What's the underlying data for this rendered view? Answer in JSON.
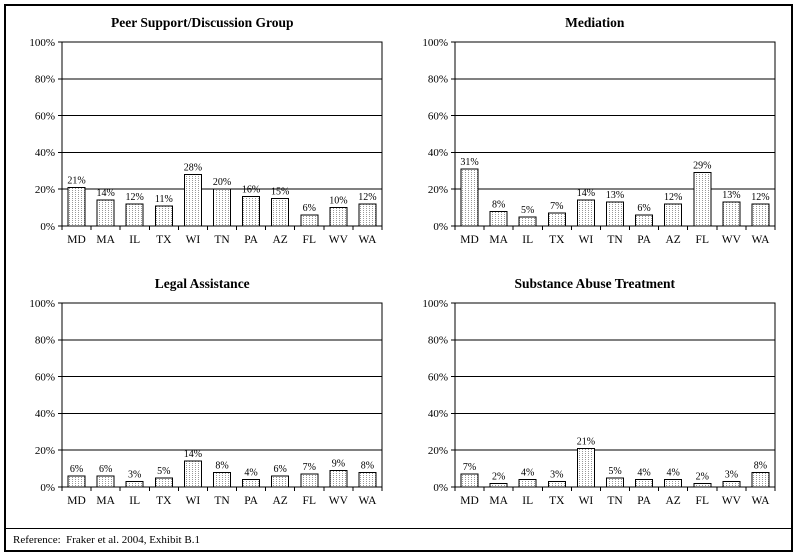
{
  "page": {
    "background": "#ffffff",
    "border_color": "#000000",
    "bar_dot_color": "#999999",
    "bar_border_color": "#000000",
    "gridline_color": "#000000"
  },
  "footer": {
    "reference": "Reference:  Fraker et al. 2004, Exhibit B.1"
  },
  "chart_data": [
    {
      "type": "bar",
      "title": "Peer Support/Discussion Group",
      "categories": [
        "MD",
        "MA",
        "IL",
        "TX",
        "WI",
        "TN",
        "PA",
        "AZ",
        "FL",
        "WV",
        "WA"
      ],
      "values": [
        21,
        14,
        12,
        11,
        28,
        20,
        16,
        15,
        6,
        10,
        12
      ],
      "labels": [
        "21%",
        "14%",
        "12%",
        "11%",
        "28%",
        "20%",
        "16%",
        "15%",
        "6%",
        "10%",
        "12%"
      ],
      "xlabel": "",
      "ylabel": "",
      "ylim": [
        0,
        100
      ],
      "yticks": [
        0,
        20,
        40,
        60,
        80,
        100
      ],
      "ytick_labels": [
        "0%",
        "20%",
        "40%",
        "60%",
        "80%",
        "100%"
      ],
      "grid": "horizontal",
      "legend": "none"
    },
    {
      "type": "bar",
      "title": "Mediation",
      "categories": [
        "MD",
        "MA",
        "IL",
        "TX",
        "WI",
        "TN",
        "PA",
        "AZ",
        "FL",
        "WV",
        "WA"
      ],
      "values": [
        31,
        8,
        5,
        7,
        14,
        13,
        6,
        12,
        29,
        13,
        12
      ],
      "labels": [
        "31%",
        "8%",
        "5%",
        "7%",
        "14%",
        "13%",
        "6%",
        "12%",
        "29%",
        "13%",
        "12%"
      ],
      "xlabel": "",
      "ylabel": "",
      "ylim": [
        0,
        100
      ],
      "yticks": [
        0,
        20,
        40,
        60,
        80,
        100
      ],
      "ytick_labels": [
        "0%",
        "20%",
        "40%",
        "60%",
        "80%",
        "100%"
      ],
      "grid": "horizontal",
      "legend": "none"
    },
    {
      "type": "bar",
      "title": "Legal Assistance",
      "categories": [
        "MD",
        "MA",
        "IL",
        "TX",
        "WI",
        "TN",
        "PA",
        "AZ",
        "FL",
        "WV",
        "WA"
      ],
      "values": [
        6,
        6,
        3,
        5,
        14,
        8,
        4,
        6,
        7,
        9,
        8
      ],
      "labels": [
        "6%",
        "6%",
        "3%",
        "5%",
        "14%",
        "8%",
        "4%",
        "6%",
        "7%",
        "9%",
        "8%"
      ],
      "xlabel": "",
      "ylabel": "",
      "ylim": [
        0,
        100
      ],
      "yticks": [
        0,
        20,
        40,
        60,
        80,
        100
      ],
      "ytick_labels": [
        "0%",
        "20%",
        "40%",
        "60%",
        "80%",
        "100%"
      ],
      "grid": "horizontal",
      "legend": "none"
    },
    {
      "type": "bar",
      "title": "Substance Abuse Treatment",
      "categories": [
        "MD",
        "MA",
        "IL",
        "TX",
        "WI",
        "TN",
        "PA",
        "AZ",
        "FL",
        "WV",
        "WA"
      ],
      "values": [
        7,
        2,
        4,
        3,
        21,
        5,
        4,
        4,
        2,
        3,
        8
      ],
      "labels": [
        "7%",
        "2%",
        "4%",
        "3%",
        "21%",
        "5%",
        "4%",
        "4%",
        "2%",
        "3%",
        "8%"
      ],
      "xlabel": "",
      "ylabel": "",
      "ylim": [
        0,
        100
      ],
      "yticks": [
        0,
        20,
        40,
        60,
        80,
        100
      ],
      "ytick_labels": [
        "0%",
        "20%",
        "40%",
        "60%",
        "80%",
        "100%"
      ],
      "grid": "horizontal",
      "legend": "none"
    }
  ]
}
